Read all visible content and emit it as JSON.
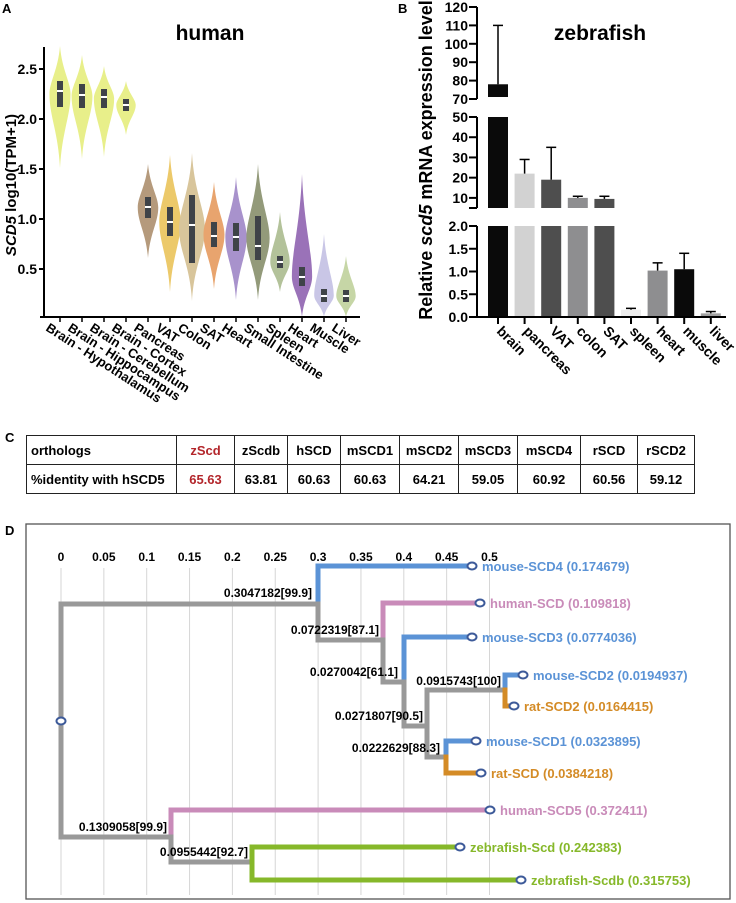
{
  "panels": {
    "A": {
      "letter": "A"
    },
    "B": {
      "letter": "B"
    },
    "C": {
      "letter": "C"
    },
    "D": {
      "letter": "D"
    }
  },
  "chart_data": [
    {
      "id": "A",
      "type": "violin",
      "title": "human",
      "ylabel_italic": "SCD5",
      "ylabel": " log10(TPM+1)",
      "yticks": [
        0.5,
        1.0,
        1.5,
        2.0,
        2.5
      ],
      "ytick_labels": [
        "0.5",
        "1.0",
        "1.5",
        "2.0",
        "2.5"
      ],
      "ylim": [
        0.02,
        2.72
      ],
      "categories": [
        "Brain - Hypothalamus",
        "Brain - Hippocampus",
        "Brain - Cerebellum",
        "Brain - Cortex",
        "Pancreas",
        "VAT",
        "Colon",
        "SAT",
        "Heart",
        "Small Intestine",
        "Spleen",
        "Heart",
        "Muscle",
        "Liver"
      ],
      "series": [
        {
          "name": "Brain - Hypothalamus",
          "color": "#e8ef8a",
          "min": 1.51,
          "q1": 2.12,
          "median": 2.28,
          "q3": 2.38,
          "max": 2.73
        },
        {
          "name": "Brain - Hippocampus",
          "color": "#e8ef8a",
          "min": 1.6,
          "q1": 2.11,
          "median": 2.24,
          "q3": 2.35,
          "max": 2.64
        },
        {
          "name": "Brain - Cerebellum",
          "color": "#e8ef8a",
          "min": 1.62,
          "q1": 2.11,
          "median": 2.22,
          "q3": 2.3,
          "max": 2.53
        },
        {
          "name": "Brain - Cortex",
          "color": "#e8ef8a",
          "min": 1.84,
          "q1": 2.08,
          "median": 2.14,
          "q3": 2.2,
          "max": 2.38
        },
        {
          "name": "Pancreas",
          "color": "#b59a7c",
          "min": 0.61,
          "q1": 1.01,
          "median": 1.12,
          "q3": 1.22,
          "max": 1.55
        },
        {
          "name": "VAT",
          "color": "#ecc96a",
          "min": 0.27,
          "q1": 0.83,
          "median": 0.97,
          "q3": 1.12,
          "max": 1.64
        },
        {
          "name": "Colon",
          "color": "#d8c59b",
          "min": 0.18,
          "q1": 0.56,
          "median": 0.94,
          "q3": 1.24,
          "max": 1.66
        },
        {
          "name": "SAT",
          "color": "#e8a46e",
          "min": 0.3,
          "q1": 0.72,
          "median": 0.83,
          "q3": 0.97,
          "max": 1.37
        },
        {
          "name": "Heart",
          "color": "#a892cc",
          "min": 0.19,
          "q1": 0.68,
          "median": 0.82,
          "q3": 0.96,
          "max": 1.42
        },
        {
          "name": "Small Intestine",
          "color": "#939a7a",
          "min": 0.19,
          "q1": 0.59,
          "median": 0.73,
          "q3": 1.03,
          "max": 1.55
        },
        {
          "name": "Spleen",
          "color": "#b3c29a",
          "min": 0.27,
          "q1": 0.51,
          "median": 0.57,
          "q3": 0.63,
          "max": 1.07
        },
        {
          "name": "Heart",
          "color": "#9a72b8",
          "min": 0.02,
          "q1": 0.33,
          "median": 0.42,
          "q3": 0.52,
          "max": 1.45
        },
        {
          "name": "Muscle",
          "color": "#c9c6e6",
          "min": 0.02,
          "q1": 0.17,
          "median": 0.23,
          "q3": 0.3,
          "max": 0.85
        },
        {
          "name": "Liver",
          "color": "#c6d6a6",
          "min": 0.02,
          "q1": 0.17,
          "median": 0.23,
          "q3": 0.29,
          "max": 0.63
        }
      ]
    },
    {
      "id": "B",
      "type": "bar",
      "title": "zebrafish",
      "ylabel_pre": "Relative ",
      "ylabel_italic": "scd5",
      "ylabel_post": " mRNA expression level",
      "axis_segments": [
        {
          "range": [
            0,
            2.0
          ],
          "ticks": [
            0.0,
            0.5,
            1.0,
            1.5,
            2.0
          ],
          "labels": [
            "0.0",
            "0.5",
            "1.0",
            "1.5",
            "2.0"
          ]
        },
        {
          "range": [
            5,
            50
          ],
          "ticks": [
            10,
            20,
            30,
            40,
            50
          ],
          "labels": [
            "10",
            "20",
            "30",
            "40",
            "50"
          ]
        },
        {
          "range": [
            70,
            120
          ],
          "ticks": [
            70,
            80,
            90,
            100,
            110,
            120
          ],
          "labels": [
            "70",
            "80",
            "90",
            "100",
            "110",
            "120"
          ]
        }
      ],
      "categories": [
        "brain",
        "pancreas",
        "VAT",
        "colon",
        "SAT",
        "spleen",
        "heart",
        "muscle",
        "liver"
      ],
      "values": [
        78,
        22,
        19,
        10,
        9.5,
        0.16,
        1.02,
        1.05,
        0.08
      ],
      "errors": [
        32,
        7,
        16,
        0.8,
        1.3,
        0.03,
        0.17,
        0.35,
        0.04
      ],
      "colors": [
        "#0a0a0a",
        "#d2d2d2",
        "#4e4e4e",
        "#8e8e90",
        "#4e4e4e",
        "#ececec",
        "#8e8e90",
        "#0a0a0a",
        "#a0a0a0"
      ]
    },
    {
      "id": "C",
      "type": "table",
      "header": [
        "orthologs",
        "zScd",
        "zScdb",
        "hSCD",
        "mSCD1",
        "mSCD2",
        "mSCD3",
        "mSCD4",
        "rSCD",
        "rSCD2"
      ],
      "row": [
        "%identity with hSCD5",
        "65.63",
        "63.81",
        "60.63",
        "60.63",
        "64.21",
        "59.05",
        "60.92",
        "60.56",
        "59.12"
      ],
      "highlight_column": 1,
      "highlight_color": "#b3262b"
    },
    {
      "id": "D",
      "type": "tree",
      "xticks": [
        0,
        0.05,
        0.1,
        0.15,
        0.2,
        0.25,
        0.3,
        0.35,
        0.4,
        0.45,
        0.5
      ],
      "xtick_labels": [
        "0",
        "0.05",
        "0.1",
        "0.15",
        "0.2",
        "0.25",
        "0.3",
        "0.35",
        "0.4",
        "0.45",
        "0.5"
      ],
      "internal_nodes": [
        {
          "id": "n1",
          "label": "0.3047182[99.9]"
        },
        {
          "id": "n2",
          "label": "0.0722319[87.1]"
        },
        {
          "id": "n3",
          "label": "0.0270042[61.1]"
        },
        {
          "id": "n4",
          "label": "0.0915743[100]"
        },
        {
          "id": "n5",
          "label": "0.0271807[90.5]"
        },
        {
          "id": "n6",
          "label": "0.0222629[88.3]"
        },
        {
          "id": "n7",
          "label": "0.1309058[99.9]"
        },
        {
          "id": "n8",
          "label": "0.0955442[92.7]"
        }
      ],
      "leaves": [
        {
          "name": "mouse-SCD4",
          "length": "0.174679",
          "color": "#5b93d6"
        },
        {
          "name": "human-SCD",
          "length": "0.109818",
          "color": "#c98bb9"
        },
        {
          "name": "mouse-SCD3",
          "length": "0.0774036",
          "color": "#5b93d6"
        },
        {
          "name": "mouse-SCD2",
          "length": "0.0194937",
          "color": "#5b93d6"
        },
        {
          "name": "rat-SCD2",
          "length": "0.0164415",
          "color": "#d48b26"
        },
        {
          "name": "mouse-SCD1",
          "length": "0.0323895",
          "color": "#5b93d6"
        },
        {
          "name": "rat-SCD",
          "length": "0.0384218",
          "color": "#d48b26"
        },
        {
          "name": "human-SCD5",
          "length": "0.372411",
          "color": "#c98bb9"
        },
        {
          "name": "zebrafish-Scd",
          "length": "0.242383",
          "color": "#86b82a"
        },
        {
          "name": "zebrafish-Scdb",
          "length": "0.315753",
          "color": "#86b82a"
        }
      ],
      "branch_color": "#999999",
      "node_marker_color": "#3d5a99"
    }
  ]
}
